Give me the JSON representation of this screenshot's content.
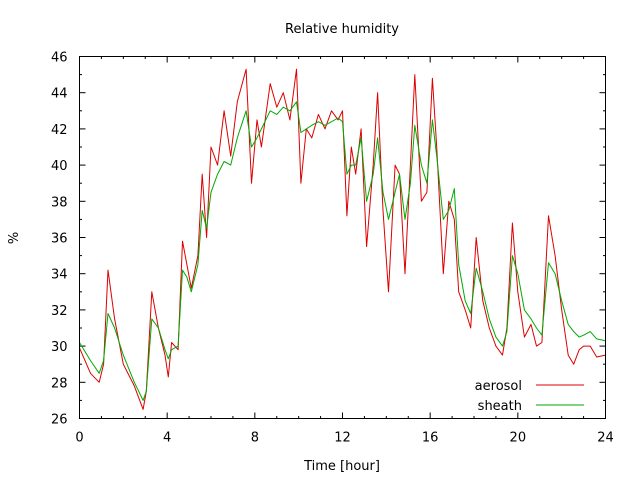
{
  "chart_data": {
    "type": "line",
    "title": "Relative humidity",
    "xlabel": "Time [hour]",
    "ylabel": "%",
    "xlim": [
      0,
      24
    ],
    "ylim": [
      26,
      46
    ],
    "xticks": [
      0,
      4,
      8,
      12,
      16,
      20,
      24
    ],
    "yticks": [
      26,
      28,
      30,
      32,
      34,
      36,
      38,
      40,
      42,
      44,
      46
    ],
    "grid": false,
    "legend": "bottom-right",
    "series": [
      {
        "name": "aerosol",
        "color": "#dd0000",
        "x": [
          0,
          0.5,
          0.9,
          1.1,
          1.3,
          1.6,
          2.0,
          2.5,
          2.9,
          3.05,
          3.3,
          3.6,
          3.9,
          4.05,
          4.2,
          4.5,
          4.7,
          4.9,
          5.1,
          5.4,
          5.6,
          5.8,
          6.0,
          6.3,
          6.6,
          6.9,
          7.2,
          7.6,
          7.85,
          8.1,
          8.3,
          8.7,
          9.0,
          9.3,
          9.6,
          9.9,
          10.1,
          10.35,
          10.6,
          10.9,
          11.2,
          11.5,
          11.8,
          12.0,
          12.2,
          12.4,
          12.6,
          12.85,
          13.1,
          13.4,
          13.6,
          13.85,
          14.1,
          14.4,
          14.6,
          14.85,
          15.1,
          15.3,
          15.6,
          15.85,
          16.1,
          16.3,
          16.6,
          16.85,
          17.1,
          17.3,
          17.6,
          17.85,
          18.1,
          18.4,
          18.7,
          19.0,
          19.3,
          19.5,
          19.75,
          20.0,
          20.3,
          20.6,
          20.85,
          21.1,
          21.4,
          21.7,
          22.0,
          22.3,
          22.55,
          22.8,
          23.0,
          23.3,
          23.6,
          24.0
        ],
        "values": [
          29.9,
          28.5,
          28.0,
          29.0,
          34.2,
          31.5,
          29.0,
          27.8,
          26.5,
          27.5,
          33.0,
          31.0,
          29.5,
          28.3,
          30.2,
          29.8,
          35.8,
          34.5,
          33.2,
          35.0,
          39.5,
          36.0,
          41.0,
          40.0,
          43.0,
          40.5,
          43.5,
          45.3,
          39.0,
          42.5,
          41.0,
          44.5,
          43.2,
          44.0,
          42.5,
          45.3,
          39.0,
          42.0,
          41.5,
          42.8,
          42.0,
          43.0,
          42.5,
          43.0,
          37.2,
          41.0,
          39.5,
          42.0,
          35.5,
          40.0,
          44.0,
          37.5,
          33.0,
          40.0,
          39.5,
          34.0,
          40.0,
          45.0,
          38.0,
          38.5,
          44.8,
          41.0,
          34.0,
          38.0,
          37.0,
          33.0,
          32.0,
          31.0,
          36.0,
          32.5,
          31.0,
          30.0,
          29.5,
          31.0,
          36.8,
          33.0,
          30.5,
          31.2,
          30.0,
          30.2,
          37.2,
          35.0,
          32.0,
          29.5,
          29.0,
          29.8,
          30.0,
          30.0,
          29.4,
          29.5
        ]
      },
      {
        "name": "sheath",
        "color": "#00aa00",
        "x": [
          0,
          0.5,
          0.9,
          1.1,
          1.3,
          1.6,
          2.0,
          2.5,
          2.9,
          3.05,
          3.3,
          3.6,
          3.9,
          4.05,
          4.2,
          4.5,
          4.7,
          4.9,
          5.1,
          5.4,
          5.6,
          5.8,
          6.0,
          6.3,
          6.6,
          6.9,
          7.2,
          7.6,
          7.85,
          8.1,
          8.3,
          8.7,
          9.0,
          9.3,
          9.6,
          9.9,
          10.1,
          10.35,
          10.6,
          10.9,
          11.2,
          11.5,
          11.8,
          12.0,
          12.2,
          12.4,
          12.6,
          12.85,
          13.1,
          13.4,
          13.6,
          13.85,
          14.1,
          14.4,
          14.6,
          14.85,
          15.1,
          15.3,
          15.6,
          15.85,
          16.1,
          16.3,
          16.6,
          16.85,
          17.1,
          17.3,
          17.6,
          17.85,
          18.1,
          18.4,
          18.7,
          19.0,
          19.3,
          19.5,
          19.75,
          20.0,
          20.3,
          20.6,
          20.85,
          21.1,
          21.4,
          21.7,
          22.0,
          22.3,
          22.55,
          22.8,
          23.0,
          23.3,
          23.6,
          24.0
        ],
        "values": [
          30.2,
          29.2,
          28.5,
          29.2,
          31.8,
          31.0,
          29.5,
          28.0,
          27.0,
          27.5,
          31.5,
          31.0,
          29.8,
          29.3,
          29.8,
          30.0,
          34.2,
          33.8,
          33.0,
          34.5,
          37.5,
          36.5,
          38.5,
          39.5,
          40.2,
          40.0,
          41.5,
          43.0,
          41.0,
          41.5,
          42.0,
          43.0,
          42.8,
          43.2,
          43.0,
          43.5,
          41.8,
          42.0,
          42.2,
          42.4,
          42.2,
          42.4,
          42.6,
          42.4,
          39.5,
          40.0,
          40.0,
          41.5,
          38.0,
          39.5,
          41.5,
          38.5,
          37.0,
          38.5,
          39.5,
          37.0,
          39.0,
          42.2,
          40.0,
          39.0,
          42.5,
          40.5,
          37.0,
          37.5,
          38.7,
          34.5,
          32.5,
          31.8,
          34.3,
          33.0,
          31.5,
          30.5,
          30.0,
          30.8,
          35.0,
          34.0,
          32.0,
          31.5,
          31.0,
          30.6,
          34.6,
          34.0,
          32.5,
          31.2,
          30.8,
          30.5,
          30.6,
          30.8,
          30.4,
          30.3
        ]
      }
    ]
  }
}
